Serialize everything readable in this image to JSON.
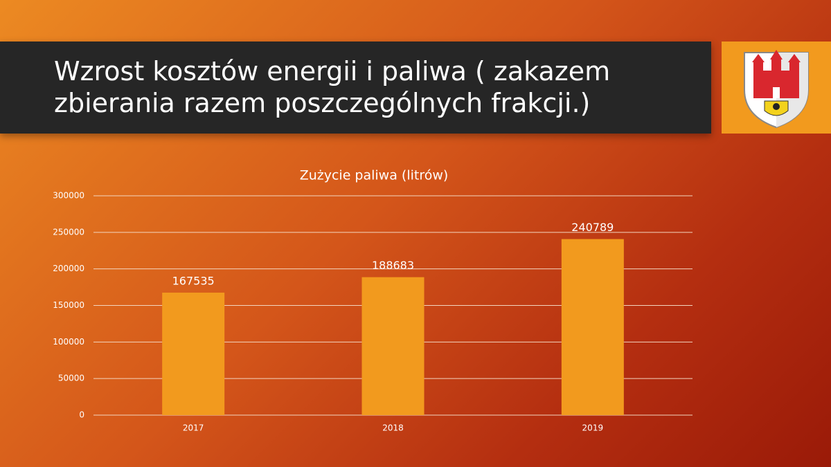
{
  "slide_title": "Wzrost kosztów energii i paliwa ( zakazem zbierania razem poszczególnych frakcji.)",
  "chart_data": {
    "type": "bar",
    "title": "Zużycie paliwa (litrów)",
    "categories": [
      "2017",
      "2018",
      "2019"
    ],
    "values": [
      167535,
      188683,
      240789
    ],
    "color": "#f29a1e",
    "ylim": [
      0,
      300000
    ],
    "yticks": [
      0,
      50000,
      100000,
      150000,
      200000,
      250000,
      300000
    ],
    "grid": true
  }
}
